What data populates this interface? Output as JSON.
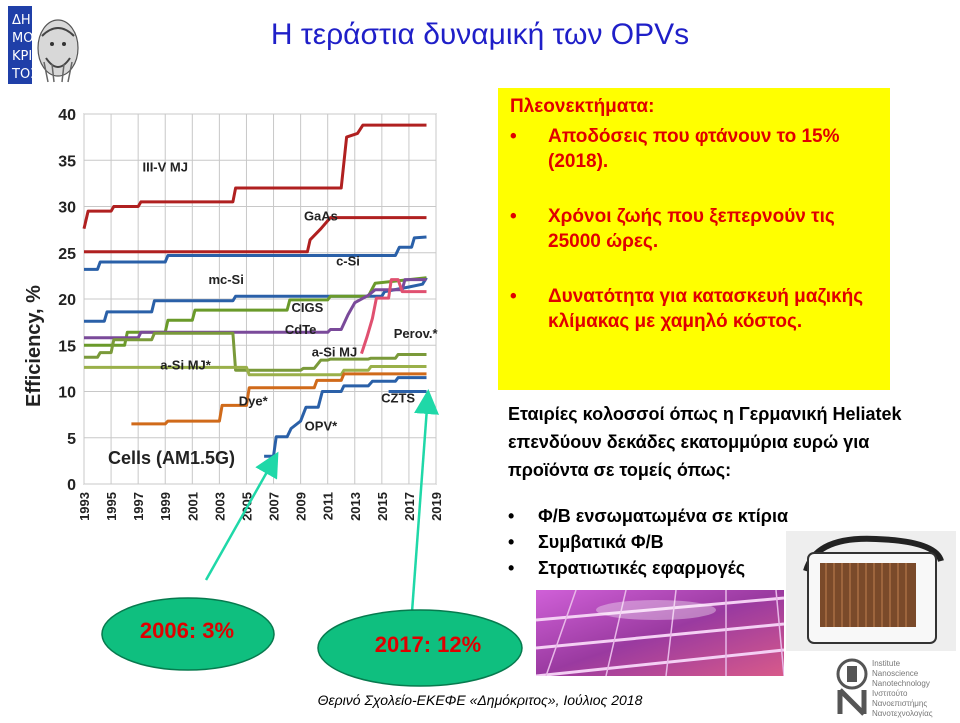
{
  "title": "Η τεράστια δυναμική των OPVs",
  "advantages": {
    "heading": "Πλεονεκτήματα:",
    "bullet": "•",
    "items": [
      "Αποδόσεις που φτάνουν το 15% (2018).",
      "Χρόνοι ζωής που ξεπερνούν τις 25000 ώρες.",
      "Δυνατότητα για κατασκευή μαζικής κλίμακας με χαμηλό κόστος."
    ]
  },
  "companies": {
    "intro": "Εταιρίες κολοσσοί όπως η Γερμανική Heliatek επενδύουν δεκάδες εκατομμύρια ευρώ για προϊόντα σε τομείς όπως:",
    "bullet": "•",
    "items": [
      "Φ/Β ενσωματωμένα σε κτίρια",
      "Συμβατικά Φ/Β",
      "Στρατιωτικές εφαρμογές"
    ]
  },
  "callouts": {
    "c2006": "2006: 3%",
    "c2017": "2017: 12%"
  },
  "logo": {
    "letters": "ΔΗΜΟΚΡΙΤΟΣ"
  },
  "inn_logo": {
    "letters": "INN",
    "lines": [
      "Institute",
      "Nanoscience",
      "Nanotechnology",
      "Ινστιτούτο",
      "Νανοεπιστήμης",
      "Νανοτεχνολογίας"
    ]
  },
  "footer": "Θερινό Σχολείο-ΕΚΕΦΕ «Δημόκριτος», Ιούλιος 2018",
  "colors": {
    "title": "#1f1fc8",
    "highlight": "#ffff00",
    "advantage_text": "#e00000",
    "callout_fill": "#0fbf7f",
    "arrow": "#1fd8a8"
  },
  "chart_data": {
    "type": "line",
    "ylabel": "Efficiency, %",
    "xlabel": "",
    "annotation": "Cells (AM1.5G)",
    "ylim": [
      0,
      40
    ],
    "xlim": [
      1993,
      2019
    ],
    "yticks": [
      0,
      5,
      10,
      15,
      20,
      25,
      30,
      35,
      40
    ],
    "xticks": [
      1993,
      1995,
      1997,
      1999,
      2001,
      2003,
      2005,
      2007,
      2009,
      2011,
      2013,
      2015,
      2017,
      2019
    ],
    "grid": true,
    "series": [
      {
        "name": "III-V MJ",
        "color": "#b02020",
        "label_at": [
          1999,
          33.8
        ],
        "points": [
          [
            1993,
            27.6
          ],
          [
            1993.3,
            29.5
          ],
          [
            1995,
            29.5
          ],
          [
            1995.2,
            30
          ],
          [
            1997,
            30
          ],
          [
            1997.2,
            30.5
          ],
          [
            2004,
            30.5
          ],
          [
            2004.2,
            32
          ],
          [
            2012,
            32
          ],
          [
            2012.4,
            37.5
          ],
          [
            2013.2,
            37.9
          ],
          [
            2013.6,
            38.8
          ],
          [
            2018.3,
            38.8
          ]
        ]
      },
      {
        "name": "GaAs",
        "color": "#b02020",
        "label_at": [
          2010.5,
          28.5
        ],
        "points": [
          [
            1993,
            25.1
          ],
          [
            2009.5,
            25.1
          ],
          [
            2009.7,
            26.4
          ],
          [
            2010.5,
            27.6
          ],
          [
            2011.2,
            28.8
          ],
          [
            2018.3,
            28.8
          ]
        ]
      },
      {
        "name": "c-Si",
        "color": "#2a60a8",
        "label_at": [
          2012.5,
          23.6
        ],
        "points": [
          [
            1993,
            23.2
          ],
          [
            1994,
            23.2
          ],
          [
            1994.2,
            24
          ],
          [
            1999,
            24
          ],
          [
            1999.2,
            24.7
          ],
          [
            2016,
            24.7
          ],
          [
            2016.3,
            25.6
          ],
          [
            2017.2,
            25.6
          ],
          [
            2017.4,
            26.6
          ],
          [
            2018.3,
            26.7
          ]
        ]
      },
      {
        "name": "mc-Si",
        "color": "#2a60a8",
        "label_at": [
          2003.5,
          21.6
        ],
        "points": [
          [
            1993,
            17.6
          ],
          [
            1994.5,
            17.6
          ],
          [
            1994.7,
            18.6
          ],
          [
            1998,
            18.6
          ],
          [
            1998.2,
            19.8
          ],
          [
            2004,
            19.8
          ],
          [
            2004.2,
            20.3
          ],
          [
            2015,
            20.3
          ],
          [
            2015.2,
            20.8
          ],
          [
            2017,
            21.3
          ],
          [
            2018,
            21.6
          ],
          [
            2018.3,
            22.3
          ]
        ]
      },
      {
        "name": "CIGS",
        "color": "#6a9a2a",
        "label_at": [
          2009.5,
          18.6
        ],
        "points": [
          [
            1993,
            15
          ],
          [
            1996,
            15
          ],
          [
            1996.2,
            16.4
          ],
          [
            1999,
            16.4
          ],
          [
            1999.2,
            17.7
          ],
          [
            2001,
            17.7
          ],
          [
            2001.2,
            18.8
          ],
          [
            2008,
            18.8
          ],
          [
            2008.2,
            19.9
          ],
          [
            2011,
            19.9
          ],
          [
            2011.2,
            20.3
          ],
          [
            2014,
            20.3
          ],
          [
            2014.5,
            21.7
          ],
          [
            2018.3,
            22.3
          ]
        ]
      },
      {
        "name": "CdTe",
        "color": "#7a4a9a",
        "label_at": [
          2009,
          16.2
        ],
        "points": [
          [
            1993,
            15.8
          ],
          [
            1997,
            15.8
          ],
          [
            1997.2,
            16.4
          ],
          [
            2011,
            16.4
          ],
          [
            2011.2,
            16.7
          ],
          [
            2012,
            16.7
          ],
          [
            2012.5,
            18.3
          ],
          [
            2013,
            19.6
          ],
          [
            2014,
            20.4
          ],
          [
            2014.5,
            21
          ],
          [
            2016.5,
            21
          ],
          [
            2016.7,
            22.1
          ],
          [
            2018.3,
            22.1
          ]
        ]
      },
      {
        "name": "Perov.*",
        "color": "#e05070",
        "label_at": [
          2017.5,
          15.8
        ],
        "points": [
          [
            2013.5,
            14.1
          ],
          [
            2013.9,
            15.9
          ],
          [
            2014.3,
            17.9
          ],
          [
            2014.6,
            20.1
          ],
          [
            2015.5,
            20.1
          ],
          [
            2015.7,
            22.1
          ],
          [
            2016.2,
            22.1
          ],
          [
            2016.5,
            20.8
          ],
          [
            2017,
            20.8
          ],
          [
            2018.3,
            20.8
          ]
        ]
      },
      {
        "name": "a-Si MJ",
        "color": "#7a9a3a",
        "label_at": [
          2011.5,
          13.8
        ],
        "points": [
          [
            1993,
            13.7
          ],
          [
            1994,
            13.7
          ],
          [
            1994.2,
            14.2
          ],
          [
            1995,
            14.2
          ],
          [
            1995.2,
            15.6
          ],
          [
            1998,
            15.6
          ],
          [
            1998.2,
            16.3
          ],
          [
            2004,
            16.3
          ],
          [
            2004.2,
            12.3
          ],
          [
            2009,
            12.3
          ],
          [
            2009.2,
            12.5
          ],
          [
            2010,
            12.5
          ],
          [
            2010.5,
            13.4
          ],
          [
            2011,
            13.4
          ],
          [
            2011.2,
            13.5
          ],
          [
            2014,
            13.5
          ],
          [
            2014.2,
            13.6
          ],
          [
            2016,
            13.6
          ],
          [
            2016.2,
            14
          ],
          [
            2018.3,
            14
          ]
        ]
      },
      {
        "name": "a-Si MJ*",
        "color": "#9ab04a",
        "label_at": [
          2000.5,
          12.4
        ],
        "points": [
          [
            1993,
            12.6
          ],
          [
            2005,
            12.6
          ],
          [
            2005.2,
            11.8
          ],
          [
            2012,
            11.8
          ],
          [
            2012.2,
            12.3
          ],
          [
            2014,
            12.3
          ],
          [
            2014.2,
            12.7
          ],
          [
            2018.3,
            12.7
          ]
        ]
      },
      {
        "name": "Dye*",
        "color": "#d06a1a",
        "label_at": [
          2005.5,
          8.5
        ],
        "points": [
          [
            1996.5,
            6.5
          ],
          [
            1999,
            6.5
          ],
          [
            1999.2,
            6.8
          ],
          [
            2003,
            6.8
          ],
          [
            2003.2,
            8.5
          ],
          [
            2005,
            8.5
          ],
          [
            2005.2,
            10.4
          ],
          [
            2010,
            10.4
          ],
          [
            2010.2,
            11.2
          ],
          [
            2012,
            11.2
          ],
          [
            2012.2,
            11.9
          ],
          [
            2018.3,
            11.9
          ]
        ]
      },
      {
        "name": "OPV*",
        "color": "#2a60a8",
        "label_at": [
          2010.5,
          5.8
        ],
        "points": [
          [
            2006.3,
            3
          ],
          [
            2007,
            3
          ],
          [
            2007.2,
            5.1
          ],
          [
            2008,
            5.1
          ],
          [
            2008.3,
            6
          ],
          [
            2009,
            6.8
          ],
          [
            2009.4,
            8.3
          ],
          [
            2010.3,
            8.3
          ],
          [
            2010.6,
            10
          ],
          [
            2012,
            10
          ],
          [
            2012.2,
            10.6
          ],
          [
            2014,
            10.6
          ],
          [
            2014.3,
            11.1
          ],
          [
            2016,
            11.1
          ],
          [
            2016.2,
            11.5
          ],
          [
            2018.3,
            11.5
          ]
        ]
      },
      {
        "name": "CZTS",
        "color": "#2a60a8",
        "label_at": [
          2016.2,
          8.8
        ],
        "points": [
          [
            2015.5,
            10
          ],
          [
            2018.3,
            10
          ]
        ]
      }
    ]
  }
}
